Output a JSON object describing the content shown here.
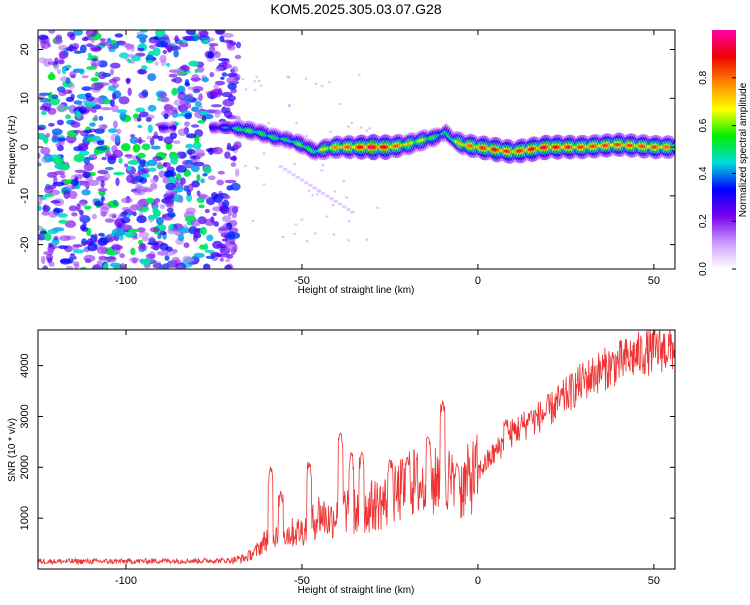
{
  "title": "KOM5.2025.305.03.07.G28",
  "colors": {
    "snr_line": "#ee3333",
    "axis": "#000000",
    "background": "#ffffff"
  },
  "chart_data": [
    {
      "type": "heatmap",
      "title": "KOM5.2025.305.03.07.G28",
      "xlabel": "Height of straight line (km)",
      "ylabel": "Frequency (Hz)",
      "xlim": [
        -125,
        56
      ],
      "ylim": [
        -25,
        24
      ],
      "xticks": [
        -100,
        -50,
        0,
        50
      ],
      "yticks": [
        -20,
        -10,
        0,
        10,
        20
      ],
      "xtick_labels": [
        "-100",
        "-50",
        "0",
        "50"
      ],
      "ytick_labels": [
        "-20",
        "-10",
        "0",
        "10",
        "20"
      ],
      "colorbar": {
        "label": "Normalized spectral amplitude",
        "range": [
          0,
          1
        ],
        "ticks": [
          0.0,
          0.2,
          0.4,
          0.6,
          0.8
        ],
        "tick_labels": [
          "0.0",
          "0.2",
          "0.4",
          "0.6",
          "0.8"
        ],
        "colormap": [
          "#ffffff",
          "#cc99ff",
          "#7700ee",
          "#0000ff",
          "#00dddd",
          "#00ee00",
          "#ffff00",
          "#ff8800",
          "#ee0000",
          "#ff00aa"
        ]
      },
      "ridge": {
        "description": "dominant frequency track",
        "x": [
          -90,
          -85,
          -75,
          -70,
          -66,
          -62,
          -58,
          -54,
          -50,
          -46,
          -44,
          -40,
          -35,
          -30,
          -25,
          -20,
          -15,
          -12,
          -9,
          -7,
          -4,
          0,
          5,
          10,
          15,
          20,
          30,
          40,
          50,
          56
        ],
        "frequency": [
          4,
          4,
          4,
          4,
          3.5,
          3,
          2,
          1.5,
          0.5,
          -1,
          -0.5,
          0,
          0,
          0,
          0,
          0.5,
          1.5,
          2,
          3,
          1.5,
          0.5,
          0,
          -0.5,
          -1,
          -0.5,
          0,
          0,
          0.5,
          0,
          0
        ],
        "amplitude": [
          0.3,
          0.25,
          0.3,
          0.4,
          0.55,
          0.5,
          0.5,
          0.45,
          0.55,
          0.5,
          0.6,
          0.7,
          0.75,
          0.85,
          0.8,
          0.65,
          0.6,
          0.5,
          0.45,
          0.55,
          0.7,
          0.75,
          0.8,
          0.75,
          0.8,
          0.8,
          0.75,
          0.75,
          0.75,
          0.7
        ]
      },
      "noise_region_x": [
        -125,
        -68
      ]
    },
    {
      "type": "line",
      "xlabel": "Height of straight line (km)",
      "ylabel": "SNR (10 * v/v)",
      "xlim": [
        -125,
        56
      ],
      "ylim": [
        0,
        4700
      ],
      "xticks": [
        -100,
        -50,
        0,
        50
      ],
      "yticks": [
        1000,
        2000,
        3000,
        4000
      ],
      "xtick_labels": [
        "-100",
        "-50",
        "0",
        "50"
      ],
      "ytick_labels": [
        "1000",
        "2000",
        "3000",
        "4000"
      ],
      "series": [
        {
          "name": "SNR",
          "x": [
            -125,
            -110,
            -100,
            -90,
            -80,
            -70,
            -66,
            -63,
            -60,
            -57,
            -54,
            -50,
            -47,
            -45,
            -42,
            -39,
            -36,
            -33,
            -30,
            -27,
            -24,
            -21,
            -18,
            -15,
            -12,
            -10,
            -8,
            -6,
            -4,
            -2,
            0,
            5,
            10,
            15,
            20,
            25,
            30,
            35,
            40,
            45,
            50,
            56
          ],
          "y": [
            150,
            150,
            150,
            160,
            160,
            170,
            220,
            350,
            600,
            700,
            700,
            750,
            900,
            1100,
            950,
            1200,
            1150,
            1100,
            1250,
            1300,
            1400,
            1600,
            1700,
            1600,
            1700,
            2200,
            1700,
            1500,
            1650,
            1800,
            1900,
            2300,
            2700,
            2900,
            3100,
            3400,
            3700,
            3900,
            4050,
            4200,
            4300,
            4350
          ]
        }
      ],
      "spikes": {
        "x": [
          -59,
          -56,
          -48,
          -39,
          -36,
          -33,
          -25,
          -20,
          -14,
          -10,
          -6,
          8,
          15
        ],
        "y": [
          2000,
          1550,
          2100,
          2700,
          2300,
          2300,
          2150,
          2200,
          2600,
          3300,
          2100,
          2950,
          3100
        ]
      }
    }
  ]
}
